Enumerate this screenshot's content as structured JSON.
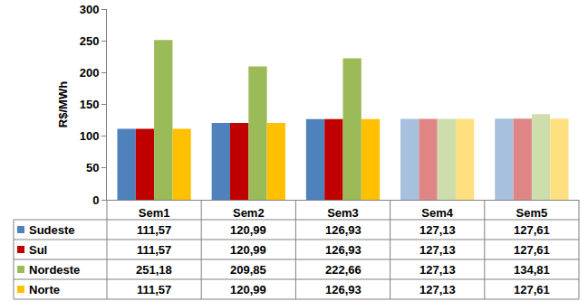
{
  "chart_data": {
    "type": "bar",
    "y_label": "R$/MWh",
    "categories": [
      "Sem1",
      "Sem2",
      "Sem3",
      "Sem4",
      "Sem5"
    ],
    "series": [
      {
        "name": "Sudeste",
        "color": "#4F81BD",
        "colors": [
          "#4F81BD",
          "#4F81BD",
          "#4F81BD",
          "#A7C0DE",
          "#A7C0DE"
        ],
        "values": [
          111.57,
          120.99,
          126.93,
          127.13,
          127.61
        ],
        "value_labels": [
          "111,57",
          "120,99",
          "126,93",
          "127,13",
          "127,61"
        ]
      },
      {
        "name": "Sul",
        "color": "#C00000",
        "colors": [
          "#C00000",
          "#C00000",
          "#C00000",
          "#E08585",
          "#E08585"
        ],
        "values": [
          111.57,
          120.99,
          126.93,
          127.13,
          127.61
        ],
        "value_labels": [
          "111,57",
          "120,99",
          "126,93",
          "127,13",
          "127,61"
        ]
      },
      {
        "name": "Nordeste",
        "color": "#9BBB59",
        "colors": [
          "#9BBB59",
          "#9BBB59",
          "#9BBB59",
          "#CDDDAC",
          "#CDDDAC"
        ],
        "values": [
          251.18,
          209.85,
          222.66,
          127.13,
          134.81
        ],
        "value_labels": [
          "251,18",
          "209,85",
          "222,66",
          "127,13",
          "134,81"
        ]
      },
      {
        "name": "Norte",
        "color": "#FFC000",
        "colors": [
          "#FFC000",
          "#FFC000",
          "#FFC000",
          "#FFE080",
          "#FFE080"
        ],
        "values": [
          111.57,
          120.99,
          126.93,
          127.13,
          127.61
        ],
        "value_labels": [
          "111,57",
          "120,99",
          "126,93",
          "127,13",
          "127,61"
        ]
      }
    ],
    "ylim": [
      0,
      300
    ],
    "yticks": [
      0,
      50,
      100,
      150,
      200,
      250,
      300
    ],
    "grid": false,
    "data_labels": false
  }
}
